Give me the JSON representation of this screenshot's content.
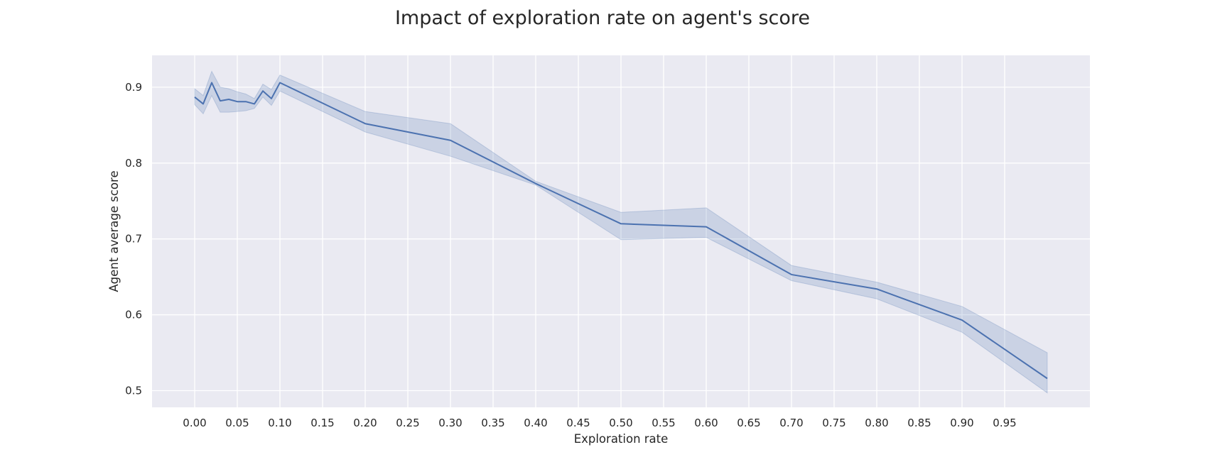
{
  "chart_data": {
    "type": "line",
    "title": "Impact of exploration rate on agent's score",
    "xlabel": "Exploration rate",
    "ylabel": "Agent average score",
    "xlim": [
      -0.05,
      1.05
    ],
    "ylim": [
      0.478,
      0.942
    ],
    "x_ticks": [
      "0.00",
      "0.05",
      "0.10",
      "0.15",
      "0.20",
      "0.25",
      "0.30",
      "0.35",
      "0.40",
      "0.45",
      "0.50",
      "0.55",
      "0.60",
      "0.65",
      "0.70",
      "0.75",
      "0.80",
      "0.85",
      "0.90",
      "0.95"
    ],
    "y_ticks": [
      "0.5",
      "0.6",
      "0.7",
      "0.8",
      "0.9"
    ],
    "grid": true,
    "background": "#eaeaf2",
    "series": [
      {
        "color": "#4c72b0",
        "band_color": "#4c72b0",
        "x": [
          0.0,
          0.01,
          0.02,
          0.03,
          0.04,
          0.05,
          0.06,
          0.07,
          0.08,
          0.09,
          0.1,
          0.2,
          0.3,
          0.4,
          0.5,
          0.6,
          0.7,
          0.8,
          0.9,
          1.0
        ],
        "y": [
          0.887,
          0.878,
          0.906,
          0.882,
          0.884,
          0.881,
          0.881,
          0.878,
          0.895,
          0.885,
          0.906,
          0.852,
          0.83,
          0.773,
          0.72,
          0.716,
          0.653,
          0.634,
          0.593,
          0.516
        ],
        "lower": [
          0.877,
          0.865,
          0.889,
          0.867,
          0.867,
          0.868,
          0.869,
          0.872,
          0.887,
          0.876,
          0.895,
          0.841,
          0.809,
          0.771,
          0.699,
          0.702,
          0.645,
          0.621,
          0.577,
          0.497
        ],
        "upper": [
          0.898,
          0.889,
          0.921,
          0.9,
          0.898,
          0.894,
          0.891,
          0.885,
          0.904,
          0.897,
          0.916,
          0.868,
          0.852,
          0.776,
          0.735,
          0.741,
          0.665,
          0.643,
          0.611,
          0.55
        ]
      }
    ]
  }
}
